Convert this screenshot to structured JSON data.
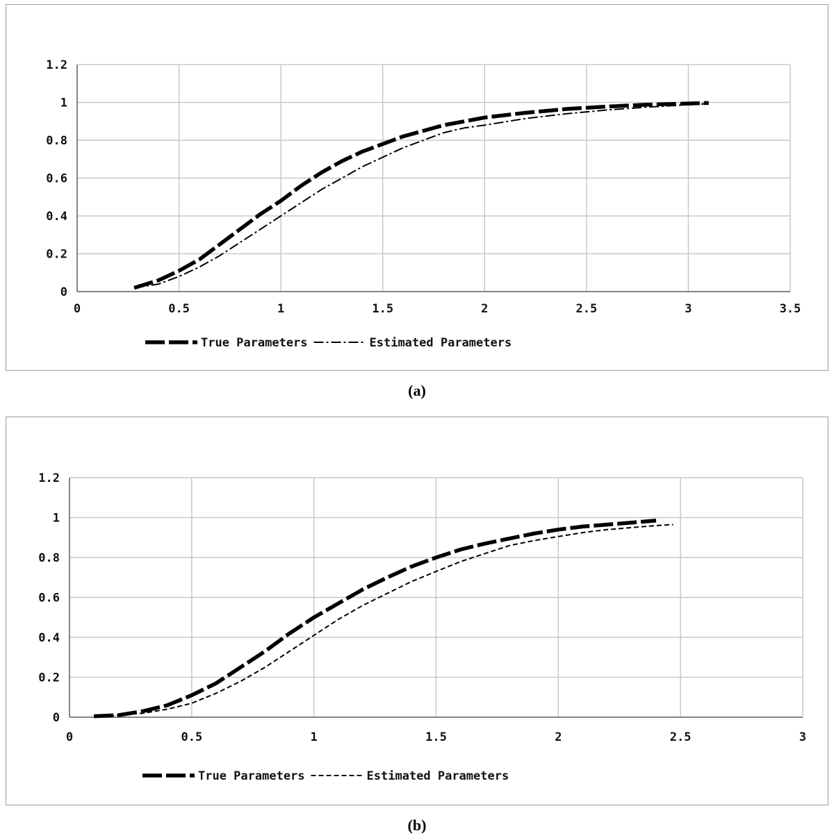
{
  "captions": [
    "(a)",
    "(b)"
  ],
  "chart_data": [
    {
      "type": "line",
      "title": "",
      "xlabel": "",
      "ylabel": "",
      "xlim": [
        0,
        3.5
      ],
      "ylim": [
        0,
        1.2
      ],
      "xticks": [
        "0",
        "0.5",
        "1",
        "1.5",
        "2",
        "2.5",
        "3",
        "3.5"
      ],
      "yticks": [
        "0",
        "0.2",
        "0.4",
        "0.6",
        "0.8",
        "1",
        "1.2"
      ],
      "grid": true,
      "legend_position": "bottom",
      "series": [
        {
          "name": "True Parameters",
          "style": "long-dash-thick",
          "color": "#000000",
          "x": [
            0.28,
            0.4,
            0.5,
            0.6,
            0.7,
            0.8,
            0.9,
            1.0,
            1.1,
            1.2,
            1.3,
            1.4,
            1.5,
            1.6,
            1.7,
            1.8,
            1.9,
            2.0,
            2.2,
            2.4,
            2.6,
            2.8,
            3.0,
            3.1
          ],
          "y": [
            0.02,
            0.06,
            0.11,
            0.17,
            0.25,
            0.33,
            0.41,
            0.48,
            0.56,
            0.63,
            0.69,
            0.74,
            0.78,
            0.82,
            0.85,
            0.88,
            0.9,
            0.92,
            0.945,
            0.965,
            0.978,
            0.988,
            0.994,
            0.997
          ]
        },
        {
          "name": "Estimated Parameters",
          "style": "dash-dot-thin",
          "color": "#000000",
          "x": [
            0.28,
            0.4,
            0.5,
            0.6,
            0.7,
            0.8,
            0.9,
            1.0,
            1.1,
            1.2,
            1.3,
            1.4,
            1.5,
            1.6,
            1.7,
            1.8,
            1.9,
            2.0,
            2.2,
            2.4,
            2.6,
            2.8,
            3.0,
            3.1
          ],
          "y": [
            0.02,
            0.04,
            0.08,
            0.13,
            0.19,
            0.26,
            0.33,
            0.4,
            0.47,
            0.54,
            0.6,
            0.66,
            0.71,
            0.76,
            0.8,
            0.84,
            0.865,
            0.88,
            0.915,
            0.94,
            0.96,
            0.975,
            0.988,
            0.993
          ]
        }
      ]
    },
    {
      "type": "line",
      "title": "",
      "xlabel": "",
      "ylabel": "",
      "xlim": [
        0,
        3
      ],
      "ylim": [
        0,
        1.2
      ],
      "xticks": [
        "0",
        "0.5",
        "1",
        "1.5",
        "2",
        "2.5",
        "3"
      ],
      "yticks": [
        "0",
        "0.2",
        "0.4",
        "0.6",
        "0.8",
        "1",
        "1.2"
      ],
      "grid": true,
      "legend_position": "bottom",
      "series": [
        {
          "name": "True Parameters",
          "style": "long-dash-thick",
          "color": "#000000",
          "x": [
            0.1,
            0.2,
            0.3,
            0.4,
            0.5,
            0.6,
            0.7,
            0.8,
            0.9,
            1.0,
            1.1,
            1.2,
            1.3,
            1.4,
            1.5,
            1.6,
            1.7,
            1.8,
            1.9,
            2.0,
            2.1,
            2.2,
            2.3,
            2.4
          ],
          "y": [
            0.005,
            0.01,
            0.03,
            0.06,
            0.11,
            0.17,
            0.25,
            0.33,
            0.42,
            0.5,
            0.57,
            0.64,
            0.7,
            0.755,
            0.8,
            0.84,
            0.87,
            0.895,
            0.92,
            0.94,
            0.955,
            0.965,
            0.975,
            0.985
          ]
        },
        {
          "name": "Estimated Parameters",
          "style": "short-dash-thin",
          "color": "#000000",
          "x": [
            0.1,
            0.2,
            0.3,
            0.4,
            0.5,
            0.6,
            0.7,
            0.8,
            0.9,
            1.0,
            1.1,
            1.2,
            1.3,
            1.4,
            1.5,
            1.6,
            1.7,
            1.8,
            1.9,
            2.0,
            2.1,
            2.2,
            2.3,
            2.4,
            2.47
          ],
          "y": [
            0.0,
            0.01,
            0.02,
            0.04,
            0.07,
            0.12,
            0.18,
            0.25,
            0.33,
            0.41,
            0.49,
            0.56,
            0.62,
            0.68,
            0.73,
            0.78,
            0.82,
            0.86,
            0.885,
            0.905,
            0.925,
            0.94,
            0.95,
            0.96,
            0.965
          ]
        }
      ]
    }
  ]
}
